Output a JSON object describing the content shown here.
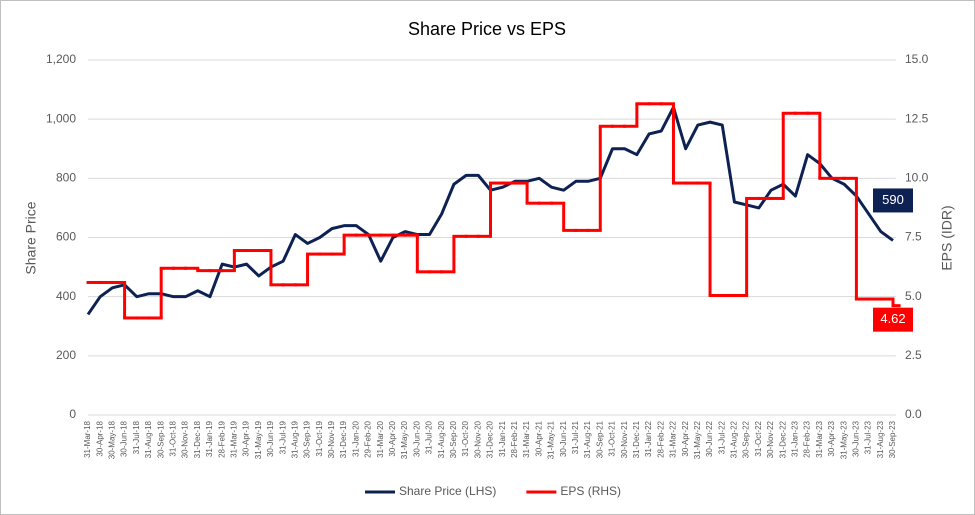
{
  "chart_data": {
    "type": "line",
    "title": "Share Price vs EPS",
    "y_label": "Share Price",
    "y2_label": "EPS (IDR)",
    "categories": [
      "31-Mar-18",
      "30-Apr-18",
      "30-May-18",
      "30-Jun-18",
      "31-Jul-18",
      "31-Aug-18",
      "30-Sep-18",
      "31-Oct-18",
      "30-Nov-18",
      "31-Dec-18",
      "31-Jan-19",
      "28-Feb-19",
      "31-Mar-19",
      "30-Apr-19",
      "31-May-19",
      "30-Jun-19",
      "31-Jul-19",
      "31-Aug-19",
      "30-Sep-19",
      "31-Oct-19",
      "30-Nov-19",
      "31-Dec-19",
      "31-Jan-20",
      "29-Feb-20",
      "31-Mar-20",
      "30-Apr-20",
      "31-May-20",
      "30-Jun-20",
      "31-Jul-20",
      "31-Aug-20",
      "30-Sep-20",
      "31-Oct-20",
      "30-Nov-20",
      "31-Dec-20",
      "31-Jan-21",
      "28-Feb-21",
      "31-Mar-21",
      "30-Apr-21",
      "31-May-21",
      "30-Jun-21",
      "31-Jul-21",
      "31-Aug-21",
      "30-Sep-21",
      "31-Oct-21",
      "30-Nov-21",
      "31-Dec-21",
      "31-Jan-22",
      "28-Feb-22",
      "31-Mar-22",
      "30-Apr-22",
      "31-May-22",
      "30-Jun-22",
      "31-Jul-22",
      "31-Aug-22",
      "30-Sep-22",
      "31-Oct-22",
      "30-Nov-22",
      "31-Dec-22",
      "31-Jan-23",
      "28-Feb-23",
      "31-Mar-23",
      "30-Apr-23",
      "31-May-23",
      "30-Jun-23",
      "31-Jul-23",
      "31-Aug-23",
      "30-Sep-23"
    ],
    "series": [
      {
        "name": "Share Price (LHS)",
        "color": "#0d2253",
        "axis": "y",
        "values": [
          340,
          400,
          430,
          440,
          400,
          410,
          410,
          400,
          400,
          420,
          400,
          510,
          500,
          510,
          470,
          500,
          520,
          610,
          580,
          600,
          630,
          640,
          640,
          610,
          520,
          600,
          620,
          610,
          610,
          680,
          780,
          810,
          810,
          760,
          770,
          790,
          790,
          800,
          770,
          760,
          790,
          790,
          800,
          900,
          900,
          880,
          950,
          960,
          1040,
          900,
          980,
          990,
          980,
          720,
          710,
          700,
          760,
          780,
          740,
          880,
          850,
          800,
          780,
          740,
          680,
          620,
          590
        ]
      },
      {
        "name": "EPS (RHS)",
        "color": "#ff0000",
        "axis": "y2",
        "step": true,
        "values": [
          5.6,
          5.6,
          5.6,
          4.1,
          4.1,
          4.1,
          6.2,
          6.2,
          6.2,
          6.1,
          6.1,
          6.1,
          6.95,
          6.95,
          6.95,
          5.5,
          5.5,
          5.5,
          6.8,
          6.8,
          6.8,
          7.6,
          7.6,
          7.6,
          7.6,
          7.6,
          7.6,
          6.05,
          6.05,
          6.05,
          7.55,
          7.55,
          7.55,
          9.8,
          9.8,
          9.8,
          8.95,
          8.95,
          8.95,
          7.8,
          7.8,
          7.8,
          12.2,
          12.2,
          12.2,
          13.15,
          13.15,
          13.15,
          9.8,
          9.8,
          9.8,
          5.05,
          5.05,
          5.05,
          9.15,
          9.15,
          9.15,
          12.75,
          12.75,
          12.75,
          10.0,
          10.0,
          10.0,
          4.9,
          4.9,
          4.9,
          4.62
        ]
      }
    ],
    "ylim": [
      0,
      1200
    ],
    "yticks": [
      0,
      200,
      400,
      600,
      800,
      {
        "value": 1000,
        "label": "1,000"
      },
      {
        "value": 1200,
        "label": "1,200"
      }
    ],
    "y2lim": [
      0,
      15
    ],
    "y2ticks": [
      {
        "value": 0,
        "label": "0.0"
      },
      2.5,
      {
        "value": 5,
        "label": "5.0"
      },
      7.5,
      {
        "value": 10,
        "label": "10.0"
      },
      12.5,
      {
        "value": 15,
        "label": "15.0"
      }
    ],
    "grid": true,
    "legend": "bottom"
  }
}
